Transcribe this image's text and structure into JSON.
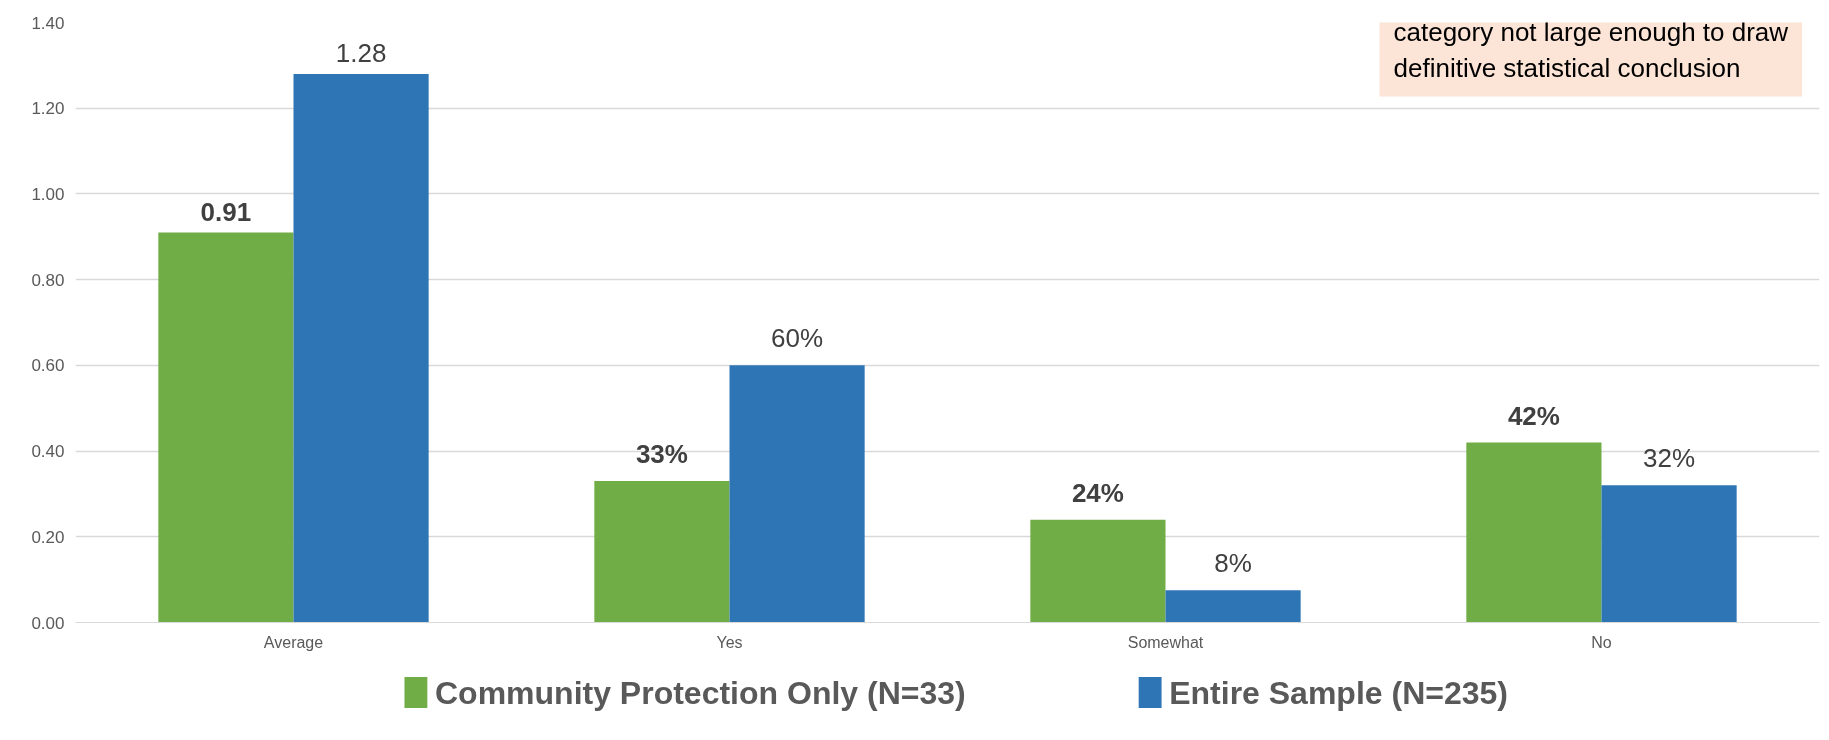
{
  "chart_data": {
    "type": "bar",
    "categories": [
      "Average",
      "Yes",
      "Somewhat",
      "No"
    ],
    "series": [
      {
        "name": "Community Protection Only (N=33)",
        "color": "#70ad47",
        "values": [
          0.91,
          0.33,
          0.24,
          0.42
        ],
        "value_labels": [
          "0.91",
          "33%",
          "24%",
          "42%"
        ]
      },
      {
        "name": "Entire Sample (N=235)",
        "color": "#2e75b6",
        "values": [
          1.28,
          0.6,
          0.075,
          0.32
        ],
        "value_labels": [
          "1.28",
          "60%",
          "8%",
          "32%"
        ]
      }
    ],
    "ylim": [
      0,
      1.4
    ],
    "yticks": [
      {
        "value": 0,
        "label": "0.00"
      },
      {
        "value": 0.2,
        "label": "0.20"
      },
      {
        "value": 0.4,
        "label": "0.40"
      },
      {
        "value": 0.6,
        "label": "0.60"
      },
      {
        "value": 0.8,
        "label": "0.80"
      },
      {
        "value": 1.0,
        "label": "1.00"
      },
      {
        "value": 1.2,
        "label": "1.20"
      },
      {
        "value": 1.4,
        "label": "1.40"
      }
    ],
    "grid": "y",
    "legend": "bottom",
    "annotations": [
      "category not large enough to draw\ndefinitive statistical conclusion"
    ]
  }
}
